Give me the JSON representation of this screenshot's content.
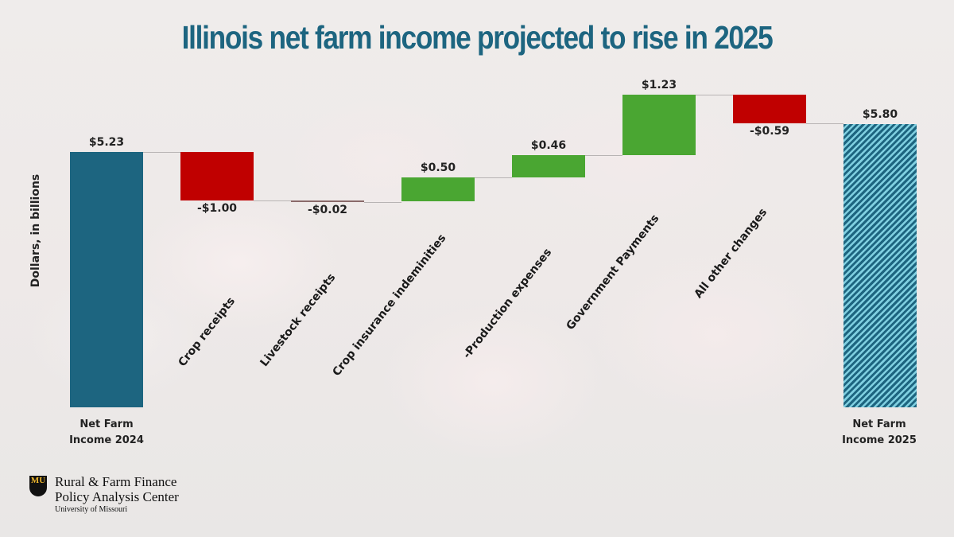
{
  "title": "Illinois net farm income projected to rise in 2025",
  "y_axis_label": "Dollars, in billions",
  "logo": {
    "mark": "MU",
    "line1": "Rural & Farm Finance",
    "line2": "Policy Analysis Center",
    "line3": "University of Missouri"
  },
  "colors": {
    "total": "#1d6580",
    "increase": "#4aa632",
    "decrease": "#c00000",
    "title": "#1d6580",
    "projected_hatch_light": "#7fcfe0"
  },
  "chart_data": {
    "type": "waterfall",
    "title": "Illinois net farm income projected to rise in 2025",
    "xlabel": "",
    "ylabel": "Dollars, in billions",
    "categories": [
      "Net Farm Income 2024",
      "Crop receipts",
      "Livestock receipts",
      "Crop insurance indeminities",
      "-Production expenses",
      "Government Payments",
      "All other changes",
      "Net Farm Income 2025"
    ],
    "values": [
      5.23,
      -1.0,
      -0.02,
      0.5,
      0.46,
      1.23,
      -0.59,
      5.8
    ],
    "value_labels": [
      "$5.23",
      "-$1.00",
      "-$0.02",
      "$0.50",
      "$0.46",
      "$1.23",
      "-$0.59",
      "$5.80"
    ],
    "bar_kinds": [
      "total",
      "decrease",
      "decrease",
      "increase",
      "increase",
      "increase",
      "decrease",
      "total-projected"
    ],
    "grid": false,
    "legend": "none",
    "ylim": [
      0,
      6.5
    ]
  },
  "bars": [
    {
      "label": "$5.23",
      "cat": "Net Farm",
      "cat2": "Income 2024"
    },
    {
      "label": "-$1.00",
      "cat": "Crop receipts"
    },
    {
      "label": "-$0.02",
      "cat": "Livestock receipts"
    },
    {
      "label": "$0.50",
      "cat": "Crop insurance indeminities"
    },
    {
      "label": "$0.46",
      "cat": "-Production expenses"
    },
    {
      "label": "$1.23",
      "cat": "Government Payments"
    },
    {
      "label": "-$0.59",
      "cat": "All other changes"
    },
    {
      "label": "$5.80",
      "cat": "Net Farm",
      "cat2": "Income 2025"
    }
  ]
}
